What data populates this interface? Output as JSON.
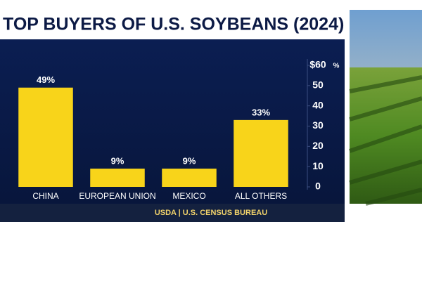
{
  "chart_data": {
    "type": "bar",
    "title": "TOP BUYERS OF U.S. SOYBEANS (2024)",
    "categories": [
      "CHINA",
      "EUROPEAN UNION",
      "MEXICO",
      "ALL OTHERS"
    ],
    "values": [
      49,
      9,
      9,
      33
    ],
    "value_labels": [
      "49%",
      "9%",
      "9%",
      "33%"
    ],
    "color": "#f8d41a",
    "ylim": [
      0,
      60
    ],
    "yticks": [
      0,
      10,
      20,
      30,
      40,
      50,
      {
        "value": 60,
        "label": "$60"
      }
    ],
    "y_unit": "%",
    "source": "USDA | U.S. CENSUS BUREAU"
  }
}
